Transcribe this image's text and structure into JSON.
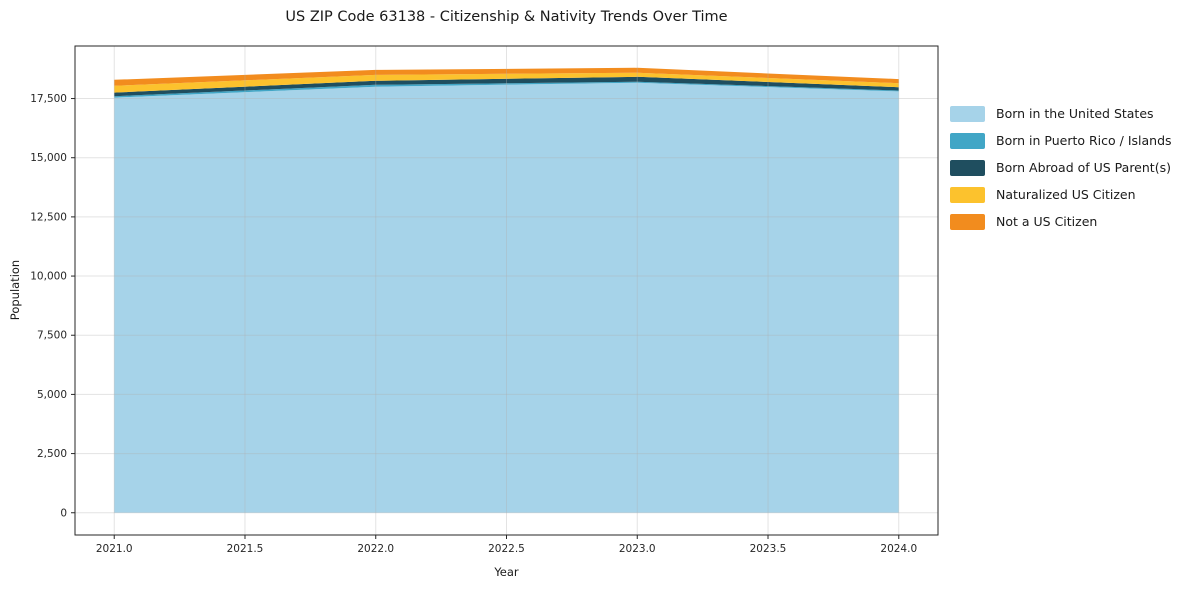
{
  "title": "US ZIP Code 63138 - Citizenship & Nativity Trends Over Time",
  "colors": {
    "background": "#ffffff",
    "spine": "#262626",
    "tick_text": "#262626",
    "grid": "#b0b0b0",
    "title_text": "#1a1a1a"
  },
  "chart_data": {
    "type": "area",
    "stacked": true,
    "title": "US ZIP Code 63138 - Citizenship & Nativity Trends Over Time",
    "xlabel": "Year",
    "ylabel": "Population",
    "x": [
      2021,
      2022,
      2023,
      2024
    ],
    "series": [
      {
        "name": "Born in the United States",
        "color": "#A6D3E9",
        "values": [
          17540,
          18000,
          18170,
          17800
        ]
      },
      {
        "name": "Born in Puerto Rico / Islands",
        "color": "#41A6C6",
        "values": [
          60,
          80,
          40,
          40
        ]
      },
      {
        "name": "Born Abroad of US Parent(s)",
        "color": "#1F4E5F",
        "values": [
          150,
          170,
          210,
          140
        ]
      },
      {
        "name": "Naturalized US Citizen",
        "color": "#FCC22D",
        "values": [
          290,
          250,
          170,
          170
        ]
      },
      {
        "name": "Not a US Citizen",
        "color": "#F28C1E",
        "values": [
          250,
          210,
          210,
          170
        ]
      }
    ],
    "x_ticks": [
      2021.0,
      2021.5,
      2022.0,
      2022.5,
      2023.0,
      2023.5,
      2024.0
    ],
    "x_tick_labels": [
      "2021.0",
      "2021.5",
      "2022.0",
      "2022.5",
      "2023.0",
      "2023.5",
      "2024.0"
    ],
    "y_ticks": [
      0,
      2500,
      5000,
      7500,
      10000,
      12500,
      15000,
      17500
    ],
    "y_tick_labels": [
      "0",
      "2,500",
      "5,000",
      "7,500",
      "10,000",
      "12,500",
      "15,000",
      "17,500"
    ],
    "xlim": [
      2020.85,
      2024.15
    ],
    "ylim": [
      -940,
      19720
    ],
    "grid": true,
    "legend_position": "outside-right"
  }
}
